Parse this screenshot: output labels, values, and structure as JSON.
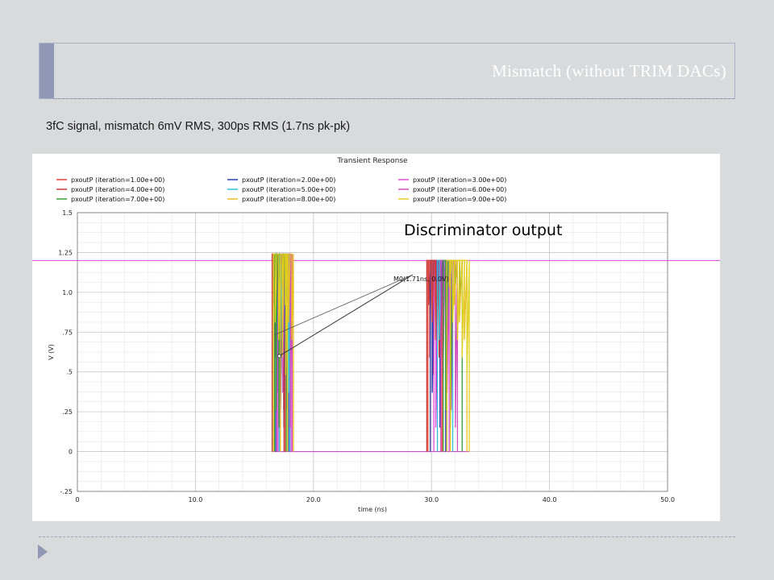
{
  "slide": {
    "title": "Mismatch (without TRIM DACs)",
    "subtitle": "3fC signal, mismatch 6mV RMS, 300ps RMS (1.7ns pk-pk)"
  },
  "colors": {
    "series": [
      "#e8443a",
      "#2a3fb0",
      "#e04bd8",
      "#c83a3a",
      "#2ec0e0",
      "#d050c0",
      "#3aa03a",
      "#e8c020",
      "#e0d020"
    ],
    "grid": "#d0d0d0",
    "reference": "#e040e0",
    "panel": "#ffffff"
  },
  "chart_data": {
    "type": "line",
    "title": "Transient Response",
    "xlabel": "time (ns)",
    "ylabel": "V (V)",
    "xlim": [
      0,
      50
    ],
    "ylim": [
      -0.25,
      1.5
    ],
    "x_ticks": [
      "0",
      "10.0",
      "20.0",
      "30.0",
      "40.0",
      "50.0"
    ],
    "y_ticks": [
      "-.25",
      "0",
      ".25",
      ".5",
      ".75",
      "1.0",
      "1.25",
      "1.5"
    ],
    "grid": true,
    "legend_position": "top",
    "series": [
      {
        "name": "pxoutP (iteration=1.00e+00)",
        "pulses": [
          [
            16.6,
            17.6
          ],
          [
            29.7,
            30.9
          ]
        ]
      },
      {
        "name": "pxoutP (iteration=2.00e+00)",
        "pulses": [
          [
            16.8,
            17.9
          ],
          [
            29.9,
            31.2
          ]
        ]
      },
      {
        "name": "pxoutP (iteration=3.00e+00)",
        "pulses": [
          [
            17.0,
            18.1
          ],
          [
            30.2,
            31.5
          ]
        ]
      },
      {
        "name": "pxoutP (iteration=4.00e+00)",
        "pulses": [
          [
            16.5,
            17.5
          ],
          [
            29.6,
            30.8
          ]
        ]
      },
      {
        "name": "pxoutP (iteration=5.00e+00)",
        "pulses": [
          [
            17.1,
            18.0
          ],
          [
            30.5,
            31.8
          ]
        ]
      },
      {
        "name": "pxoutP (iteration=6.00e+00)",
        "pulses": [
          [
            16.9,
            18.2
          ],
          [
            30.8,
            32.2
          ]
        ]
      },
      {
        "name": "pxoutP (iteration=7.00e+00)",
        "pulses": [
          [
            16.7,
            17.7
          ],
          [
            31.0,
            32.6
          ]
        ]
      },
      {
        "name": "pxoutP (iteration=8.00e+00)",
        "pulses": [
          [
            17.2,
            18.3
          ],
          [
            31.3,
            33.0
          ]
        ]
      },
      {
        "name": "pxoutP (iteration=9.00e+00)",
        "pulses": [
          [
            16.6,
            17.8
          ],
          [
            31.6,
            33.2
          ]
        ]
      }
    ],
    "pulse_high": 1.2,
    "reference_level": 1.2,
    "marker": {
      "label": "M0(1.71ns, 0.0V)",
      "x": 17.1,
      "y": 0.6
    },
    "annotation": "Discriminator output"
  }
}
